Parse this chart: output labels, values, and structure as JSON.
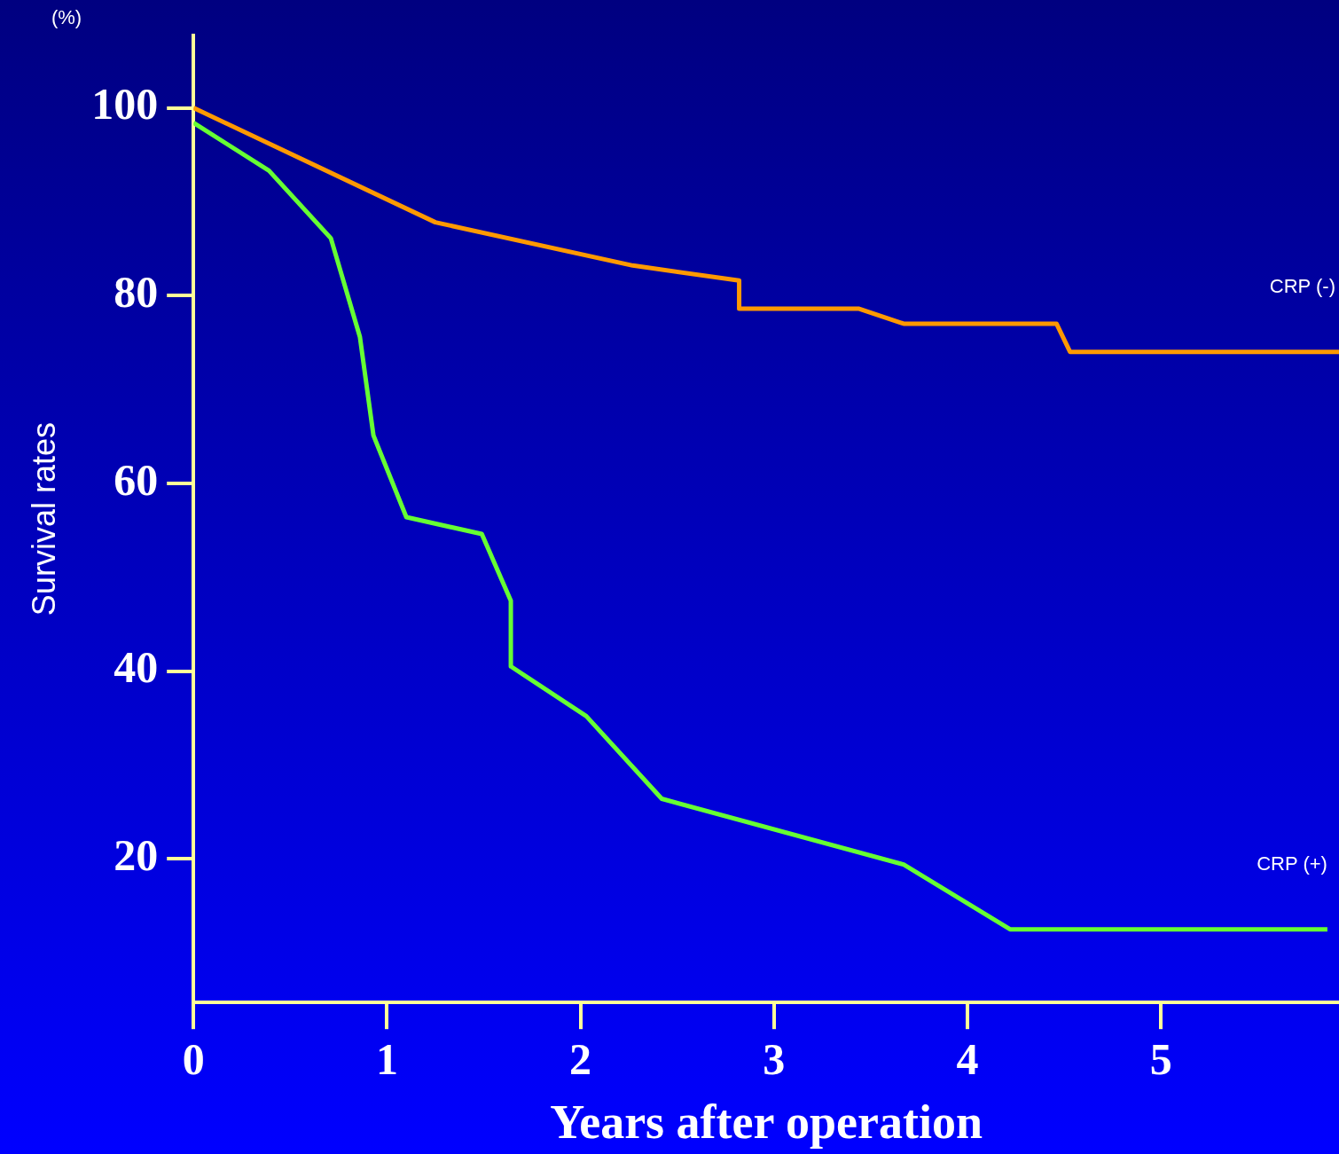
{
  "chart_data": {
    "type": "line",
    "xlabel": "Years after operation",
    "ylabel": "Survival rates",
    "annotations": [
      "(%)"
    ],
    "xlim": [
      0,
      5.92
    ],
    "ylim": [
      4.7,
      107.7
    ],
    "xticks": [
      0,
      1,
      2,
      3,
      4,
      5
    ],
    "yticks": [
      20,
      40,
      60,
      80,
      100
    ],
    "grid": false,
    "legend": false,
    "marker": "none",
    "line_style": "solid",
    "series": [
      {
        "name": "CRP (-)",
        "color": "#ff9900",
        "x": [
          0,
          1.25,
          2.27,
          2.82,
          2.82,
          3.44,
          3.67,
          4.46,
          4.53,
          5.92
        ],
        "values": [
          100,
          87.8,
          83.2,
          81.6,
          78.6,
          78.6,
          77.0,
          77.0,
          74.0,
          74.0
        ]
      },
      {
        "name": "CRP (+)",
        "color": "#66ff33",
        "x": [
          0,
          0.39,
          0.71,
          0.86,
          0.93,
          1.1,
          1.49,
          1.64,
          1.64,
          2.03,
          2.42,
          3.67,
          4.22,
          5.86
        ],
        "values": [
          98.4,
          93.3,
          86.1,
          75.6,
          65.1,
          56.4,
          54.6,
          47.5,
          40.5,
          35.2,
          26.4,
          19.4,
          12.5,
          12.5
        ]
      }
    ]
  }
}
